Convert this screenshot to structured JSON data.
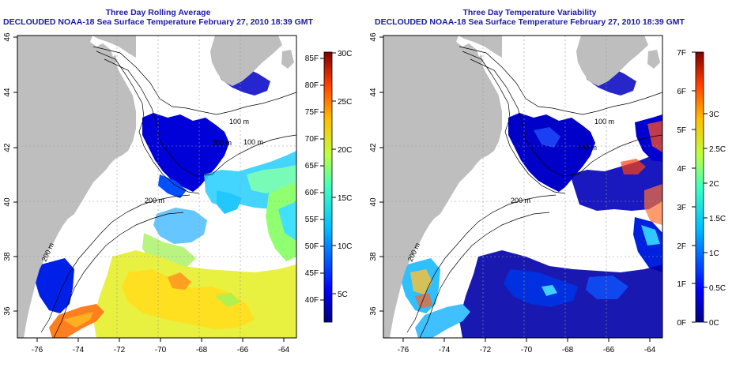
{
  "left_panel": {
    "title_line1": "Three Day Rolling Average",
    "title_line2": "DECLOUDED NOAA-18 Sea Surface Temperature February 27, 2010 18:39 GMT",
    "colorbar_f_labels": [
      "85F",
      "80F",
      "75F",
      "70F",
      "65F",
      "60F",
      "55F",
      "50F",
      "45F",
      "40F"
    ],
    "colorbar_c_labels": [
      "30C",
      "25C",
      "20C",
      "15C",
      "10C",
      "5C"
    ],
    "contour_labels": [
      "100 m",
      "200 m",
      "200 m",
      "100 m",
      "200 m"
    ]
  },
  "right_panel": {
    "title_line1": "Three Day Temperature Variability",
    "title_line2": "DECLOUDED NOAA-18 Sea Surface Temperature February 27, 2010 18:39 GMT",
    "colorbar_f_labels": [
      "7F",
      "6F",
      "5F",
      "4F",
      "3F",
      "2F",
      "1F",
      "0F"
    ],
    "colorbar_c_labels": [
      "3C",
      "2.5C",
      "2C",
      "1.5C",
      "1C",
      "0.5C",
      "0C"
    ],
    "contour_labels": [
      "100 m",
      "100 m",
      "200 m",
      "200 m"
    ]
  },
  "axes": {
    "lon_ticks": [
      "-76",
      "-74",
      "-72",
      "-70",
      "-68",
      "-66",
      "-64"
    ],
    "lat_ticks": [
      "46",
      "44",
      "42",
      "40",
      "38",
      "36"
    ]
  },
  "colors": {
    "land": "#bebebe",
    "title": "#1a1aa6",
    "sst_colormap": [
      "#00007f",
      "#0000ff",
      "#007fff",
      "#00ffff",
      "#7fff7f",
      "#ffff00",
      "#ff7f00",
      "#ff0000",
      "#7f0000"
    ]
  }
}
